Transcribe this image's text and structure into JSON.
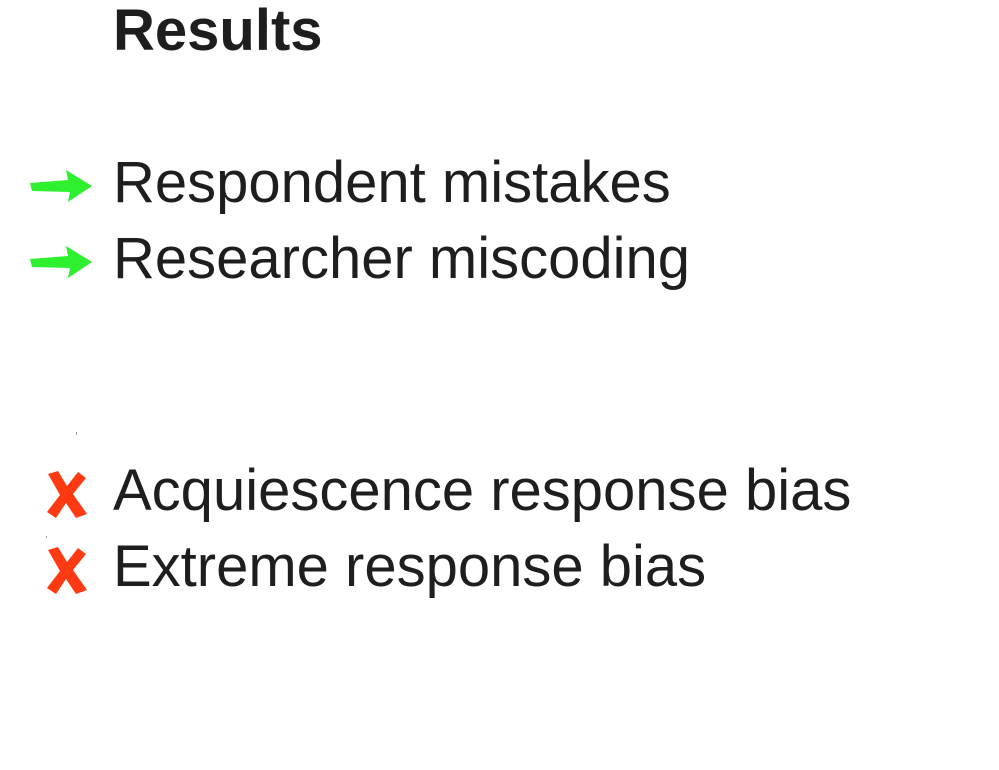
{
  "slide": {
    "title": "Results",
    "positive_items": [
      {
        "label": "Respondent mistakes",
        "icon": "green-arrow-icon"
      },
      {
        "label": "Researcher miscoding",
        "icon": "green-arrow-icon"
      }
    ],
    "negative_items": [
      {
        "label": "Acquiescence response bias",
        "icon": "red-cross-icon"
      },
      {
        "label": "Extreme response bias",
        "icon": "red-cross-icon"
      }
    ],
    "colors": {
      "text": "#1e1e1e",
      "positive": "#2ef02e",
      "negative": "#ff3a12",
      "background": "#ffffff"
    }
  }
}
